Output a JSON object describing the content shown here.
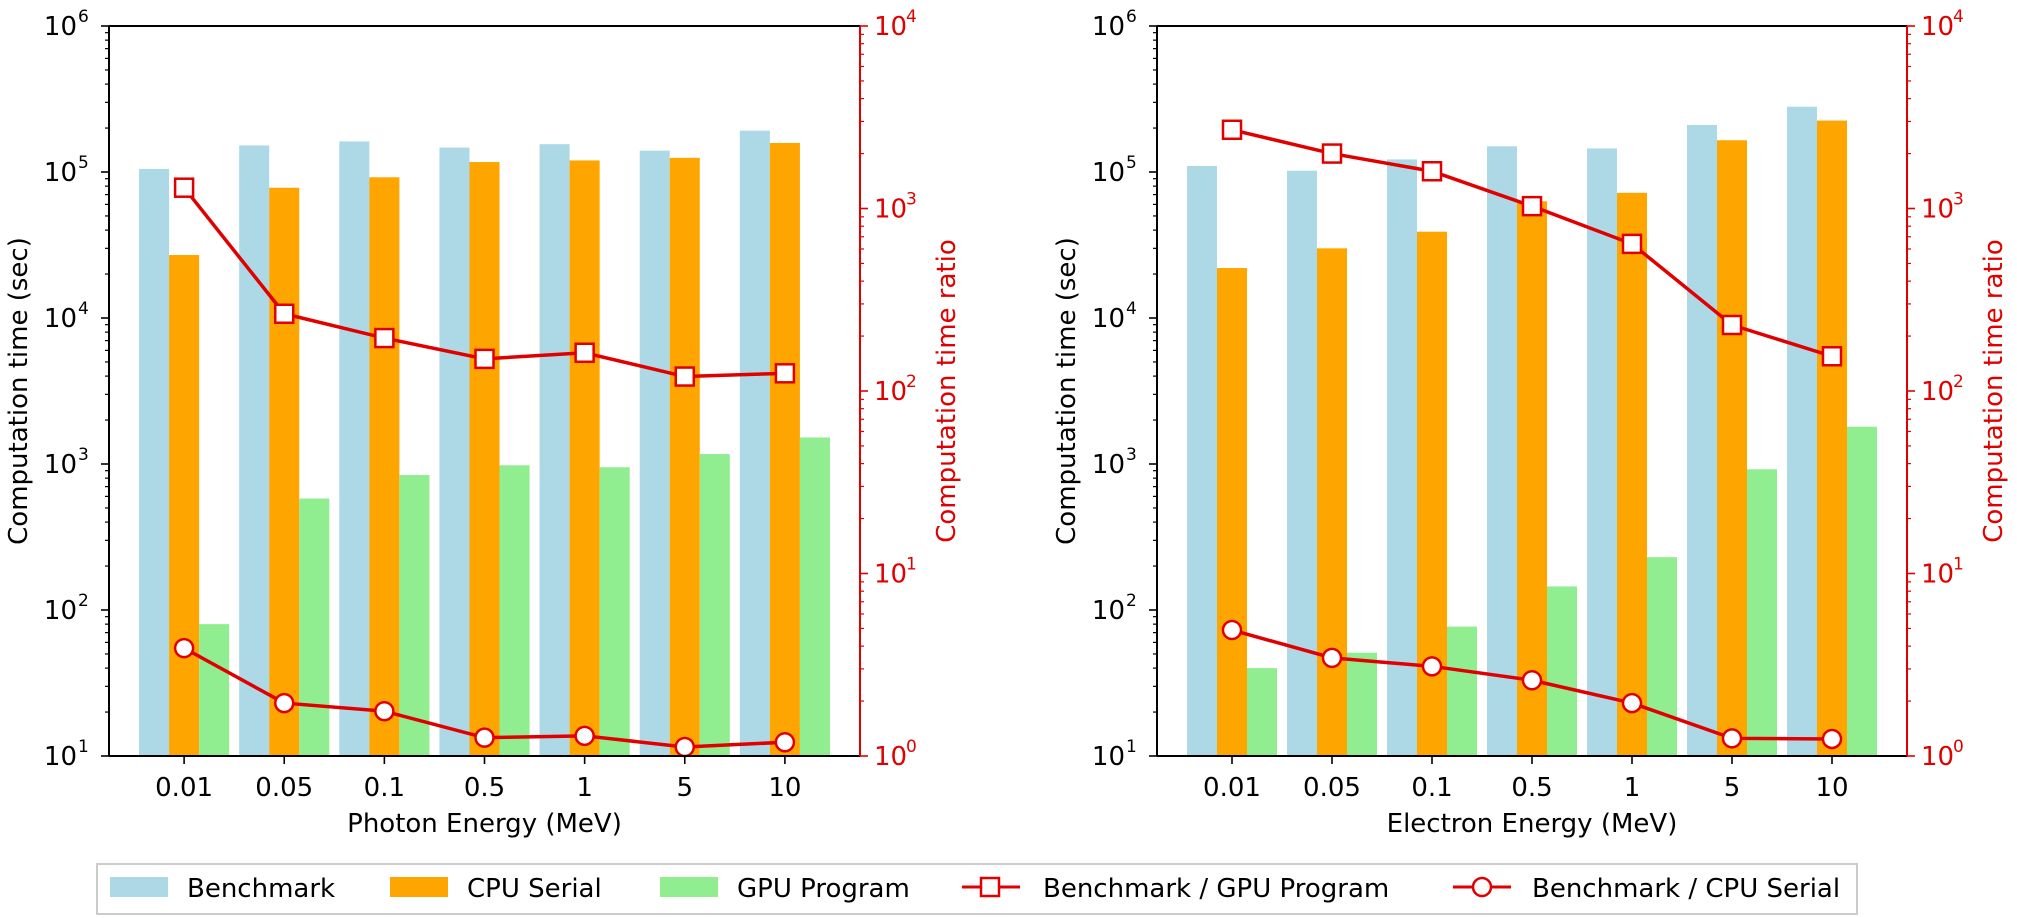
{
  "colors": {
    "benchmark": "#ADD8E6",
    "cpu_serial": "#FFA500",
    "gpu_program": "#90EE90",
    "ratio": "#E00000"
  },
  "legend": {
    "benchmark": "Benchmark",
    "cpu_serial": "CPU Serial",
    "gpu_program": "GPU Program",
    "bench_gpu": "Benchmark / GPU Program",
    "bench_cpu": "Benchmark / CPU Serial"
  },
  "chart_data": [
    {
      "type": "bar",
      "xlabel": "Photon Energy (MeV)",
      "ylabel": "Computation time (sec)",
      "y2label": "Computation time ratio",
      "categories": [
        "0.01",
        "0.05",
        "0.1",
        "0.5",
        "1",
        "5",
        "10"
      ],
      "y_scale": "log",
      "ylim": [
        10,
        1000000
      ],
      "y2lim": [
        1,
        10000
      ],
      "y_ticks": [
        "10",
        "10",
        "10",
        "10",
        "10",
        "10"
      ],
      "y_tick_exps": [
        "1",
        "2",
        "3",
        "4",
        "5",
        "6"
      ],
      "y2_tick_exps": [
        "0",
        "1",
        "2",
        "3",
        "4"
      ],
      "series": [
        {
          "name": "Benchmark",
          "values": [
            105000,
            152000,
            162000,
            147000,
            155000,
            140000,
            192000
          ]
        },
        {
          "name": "CPU Serial",
          "values": [
            27000,
            78000,
            92000,
            117000,
            120000,
            125000,
            158000
          ]
        },
        {
          "name": "GPU Program",
          "values": [
            80,
            580,
            840,
            980,
            950,
            1170,
            1520
          ]
        }
      ],
      "ratio_series": [
        {
          "name": "Benchmark / GPU Program",
          "marker": "square",
          "values": [
            1300,
            265,
            195,
            150,
            162,
            120,
            125
          ]
        },
        {
          "name": "Benchmark / CPU Serial",
          "marker": "circle",
          "values": [
            3.9,
            1.95,
            1.76,
            1.26,
            1.29,
            1.12,
            1.19
          ]
        }
      ]
    },
    {
      "type": "bar",
      "xlabel": "Electron Energy (MeV)",
      "ylabel": "Computation time (sec)",
      "y2label": "Computation time ratio",
      "categories": [
        "0.01",
        "0.05",
        "0.1",
        "0.5",
        "1",
        "5",
        "10"
      ],
      "y_scale": "log",
      "ylim": [
        10,
        1000000
      ],
      "y2lim": [
        1,
        10000
      ],
      "y_ticks": [
        "10",
        "10",
        "10",
        "10",
        "10",
        "10"
      ],
      "y_tick_exps": [
        "1",
        "2",
        "3",
        "4",
        "5",
        "6"
      ],
      "y2_tick_exps": [
        "0",
        "1",
        "2",
        "3",
        "4"
      ],
      "series": [
        {
          "name": "Benchmark",
          "values": [
            110000,
            102000,
            122000,
            150000,
            145000,
            210000,
            280000
          ]
        },
        {
          "name": "CPU Serial",
          "values": [
            22000,
            30000,
            39000,
            63000,
            72000,
            165000,
            225000
          ]
        },
        {
          "name": "GPU Program",
          "values": [
            40,
            51,
            77,
            145,
            230,
            920,
            1800
          ]
        }
      ],
      "ratio_series": [
        {
          "name": "Benchmark / GPU Program",
          "marker": "square",
          "values": [
            2700,
            2000,
            1600,
            1030,
            640,
            230,
            155
          ]
        },
        {
          "name": "Benchmark / CPU Serial",
          "marker": "circle",
          "values": [
            4.9,
            3.45,
            3.1,
            2.6,
            1.95,
            1.25,
            1.24
          ]
        }
      ]
    }
  ]
}
